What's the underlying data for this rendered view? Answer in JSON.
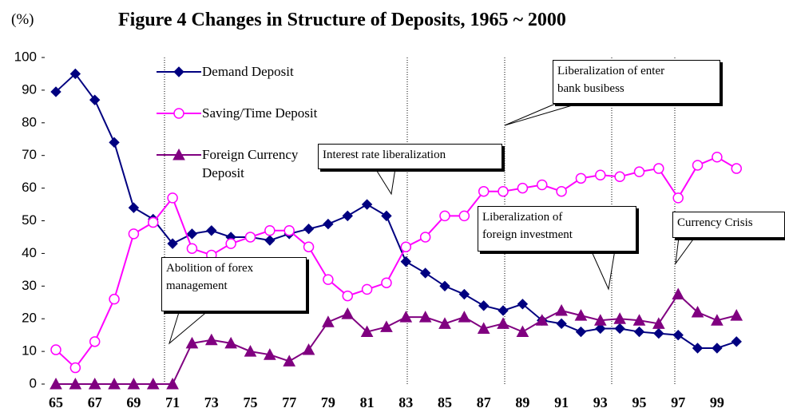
{
  "chart_data": {
    "type": "line",
    "title": "Figure 4  Changes in Structure of Deposits, 1965 ~ 2000",
    "y_label": "(%)",
    "categories": [
      "65",
      null,
      "67",
      null,
      "69",
      null,
      "71",
      null,
      "73",
      null,
      "75",
      null,
      "77",
      null,
      "79",
      null,
      "81",
      null,
      "83",
      null,
      "85",
      null,
      "87",
      null,
      "89",
      null,
      "91",
      null,
      "93",
      null,
      "95",
      null,
      "97",
      null,
      "99",
      null
    ],
    "ylim": [
      0,
      100
    ],
    "yticks": [
      0,
      10,
      20,
      30,
      40,
      50,
      60,
      70,
      80,
      90,
      100
    ],
    "series": [
      {
        "name": "Demand Deposit",
        "color": "#000080",
        "marker": "diamond",
        "values": [
          89.5,
          95,
          87,
          74,
          54,
          50.5,
          43,
          46,
          47,
          45,
          45,
          44,
          46,
          47.5,
          49,
          51.5,
          55,
          51.5,
          37.5,
          34,
          30,
          27.5,
          24,
          22.5,
          24.5,
          19.5,
          18.5,
          16,
          17,
          17,
          16,
          15.5,
          15,
          11,
          11,
          13
        ]
      },
      {
        "name": "Saving/Time Deposit",
        "color": "#ff00ff",
        "marker": "circle",
        "values": [
          10.5,
          5,
          13,
          26,
          46,
          49.5,
          57,
          41.5,
          39.5,
          43,
          45,
          47,
          47,
          42,
          32,
          27,
          29,
          31,
          42,
          45,
          51.5,
          51.5,
          59,
          59,
          60,
          61,
          59,
          63,
          64,
          63.5,
          65,
          66,
          57,
          67,
          69.5,
          66
        ]
      },
      {
        "name": "Foreign Currency Deposit",
        "color": "#800080",
        "marker": "triangle",
        "values": [
          0,
          0,
          0,
          0,
          0,
          0,
          0,
          12.5,
          13.5,
          12.5,
          10,
          9,
          7,
          10.5,
          19,
          21.5,
          16,
          17.5,
          20.5,
          20.5,
          18.5,
          20.5,
          17,
          18.5,
          16,
          19.5,
          22.5,
          21,
          19.5,
          20,
          19.5,
          18.5,
          27.5,
          22,
          19.5,
          21
        ]
      }
    ],
    "annotations": [
      {
        "lines": [
          "Abolition of forex",
          "management"
        ]
      },
      {
        "lines": [
          "Interest rate liberalization"
        ]
      },
      {
        "lines": [
          "Liberalization of enter",
          "bank busibess"
        ]
      },
      {
        "lines": [
          "Liberalization of",
          "foreign investment"
        ]
      },
      {
        "lines": [
          "Currency Crisis"
        ]
      }
    ]
  }
}
